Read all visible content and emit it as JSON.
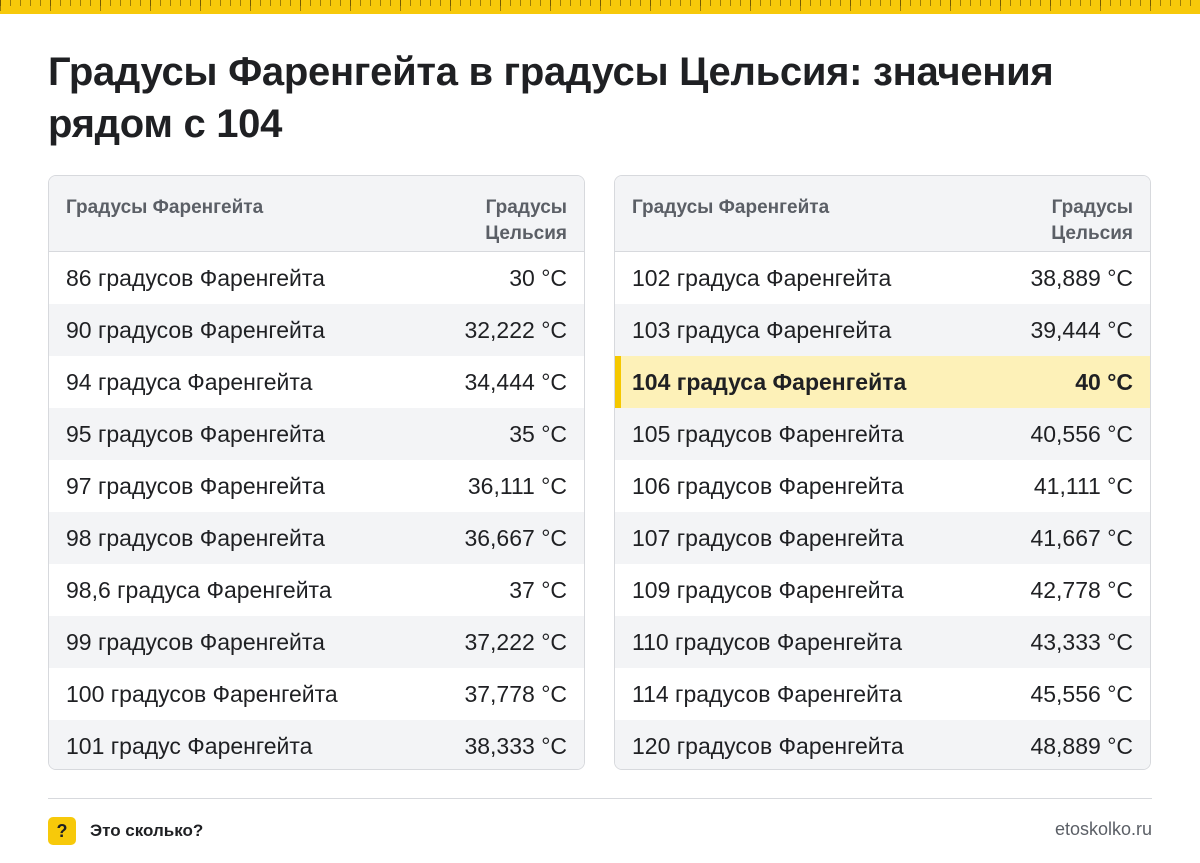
{
  "title": "Градусы Фаренгейта в градусы Цельсия: значения рядом с 104",
  "colors": {
    "accent": "#f7c90a",
    "highlight_bg": "#fdf1b8",
    "stripe": "#f3f4f6",
    "text": "#1f2023",
    "muted": "#5b5f66"
  },
  "left_table": {
    "header_f": "Градусы Фаренгейта",
    "header_c": "Градусы Цельсия",
    "rows": [
      {
        "f": "86 градусов Фаренгейта",
        "c": "30 °C"
      },
      {
        "f": "90 градусов Фаренгейта",
        "c": "32,222 °C"
      },
      {
        "f": "94 градуса Фаренгейта",
        "c": "34,444 °C"
      },
      {
        "f": "95 градусов Фаренгейта",
        "c": "35 °C"
      },
      {
        "f": "97 градусов Фаренгейта",
        "c": "36,111 °C"
      },
      {
        "f": "98 градусов Фаренгейта",
        "c": "36,667 °C"
      },
      {
        "f": "98,6 градуса Фаренгейта",
        "c": "37 °C"
      },
      {
        "f": "99 градусов Фаренгейта",
        "c": "37,222 °C"
      },
      {
        "f": "100 градусов Фаренгейта",
        "c": "37,778 °C"
      },
      {
        "f": "101 градус Фаренгейта",
        "c": "38,333 °C"
      }
    ]
  },
  "right_table": {
    "header_f": "Градусы Фаренгейта",
    "header_c": "Градусы Цельсия",
    "rows": [
      {
        "f": "102 градуса Фаренгейта",
        "c": "38,889 °C"
      },
      {
        "f": "103 градуса Фаренгейта",
        "c": "39,444 °C"
      },
      {
        "f": "104 градуса Фаренгейта",
        "c": "40 °C"
      },
      {
        "f": "105 градусов Фаренгейта",
        "c": "40,556 °C"
      },
      {
        "f": "106 градусов Фаренгейта",
        "c": "41,111 °C"
      },
      {
        "f": "107 градусов Фаренгейта",
        "c": "41,667 °C"
      },
      {
        "f": "109 градусов Фаренгейта",
        "c": "42,778 °C"
      },
      {
        "f": "110 градусов Фаренгейта",
        "c": "43,333 °C"
      },
      {
        "f": "114 градусов Фаренгейта",
        "c": "45,556 °C"
      },
      {
        "f": "120 градусов Фаренгейта",
        "c": "48,889 °C"
      }
    ]
  },
  "footer": {
    "logo_icon": "question-mark-icon",
    "logo_glyph": "?",
    "brand": "Это сколько?",
    "site": "etoskolko.ru"
  }
}
